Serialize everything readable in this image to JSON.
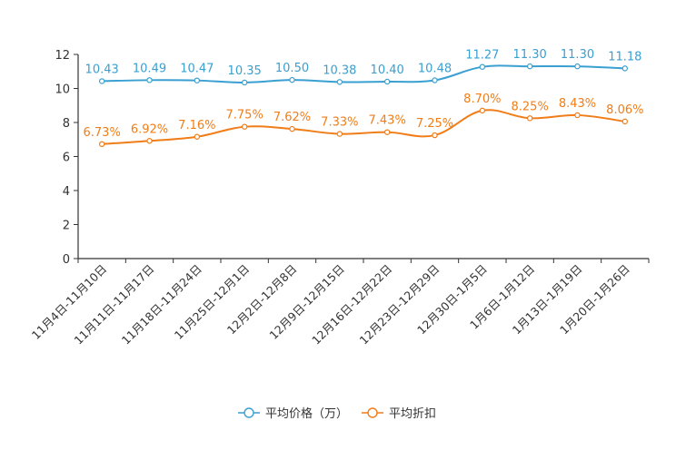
{
  "chart_data": {
    "type": "line",
    "categories": [
      "11月4日-11月10日",
      "11月11日-11月17日",
      "11月18日-11月24日",
      "11月25日-12月1日",
      "12月2日-12月8日",
      "12月9日-12月15日",
      "12月16日-12月22日",
      "12月23日-12月29日",
      "12月30日-1月5日",
      "1月6日-1月12日",
      "1月13日-1月19日",
      "1月20日-1月26日"
    ],
    "series": [
      {
        "name": "平均价格（万）",
        "color": "#3a9fd1",
        "values": [
          10.43,
          10.49,
          10.47,
          10.35,
          10.5,
          10.38,
          10.4,
          10.48,
          11.27,
          11.3,
          11.3,
          11.18
        ],
        "labels": [
          "10.43",
          "10.49",
          "10.47",
          "10.35",
          "10.50",
          "10.38",
          "10.40",
          "10.48",
          "11.27",
          "11.30",
          "11.30",
          "11.18"
        ]
      },
      {
        "name": "平均折扣",
        "color": "#f07d18",
        "values": [
          6.73,
          6.92,
          7.16,
          7.75,
          7.62,
          7.33,
          7.43,
          7.25,
          8.7,
          8.25,
          8.43,
          8.06
        ],
        "labels": [
          "6.73%",
          "6.92%",
          "7.16%",
          "7.75%",
          "7.62%",
          "7.33%",
          "7.43%",
          "7.25%",
          "8.70%",
          "8.25%",
          "8.43%",
          "8.06%"
        ]
      }
    ],
    "yticks": [
      "0",
      "2",
      "4",
      "6",
      "8",
      "10",
      "12"
    ],
    "ylim": [
      0,
      12
    ],
    "title": "",
    "xlabel": "",
    "ylabel": "",
    "legend_position": "bottom-center"
  }
}
